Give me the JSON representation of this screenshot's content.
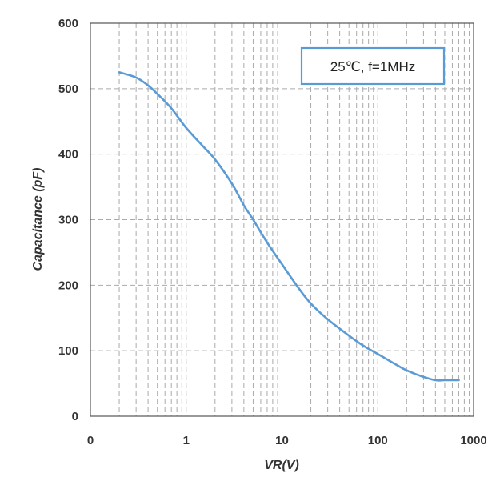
{
  "chart_data": {
    "type": "line",
    "title": "",
    "xlabel": "VR(V)",
    "ylabel": "Capacitance (pF)",
    "x_scale": "log",
    "xlim": [
      0.1,
      1000
    ],
    "ylim": [
      0,
      600
    ],
    "x_tick_labels": [
      "0",
      "1",
      "10",
      "100",
      "1000"
    ],
    "y_tick_labels": [
      "0",
      "100",
      "200",
      "300",
      "400",
      "500",
      "600"
    ],
    "grid": true,
    "grid_style": "dashed",
    "annotation": "25℃, f=1MHz",
    "line_color": "#5B9BD5",
    "series": [
      {
        "x": [
          0.2,
          0.3,
          0.4,
          0.5,
          0.7,
          1,
          1.5,
          2,
          3,
          4,
          5,
          7,
          10,
          15,
          20,
          30,
          50,
          70,
          100,
          150,
          200,
          300,
          400,
          500,
          700
        ],
        "y": [
          525,
          517,
          505,
          492,
          470,
          440,
          412,
          392,
          355,
          322,
          300,
          265,
          232,
          195,
          172,
          148,
          123,
          108,
          95,
          80,
          70,
          60,
          55,
          55,
          55
        ]
      }
    ]
  }
}
